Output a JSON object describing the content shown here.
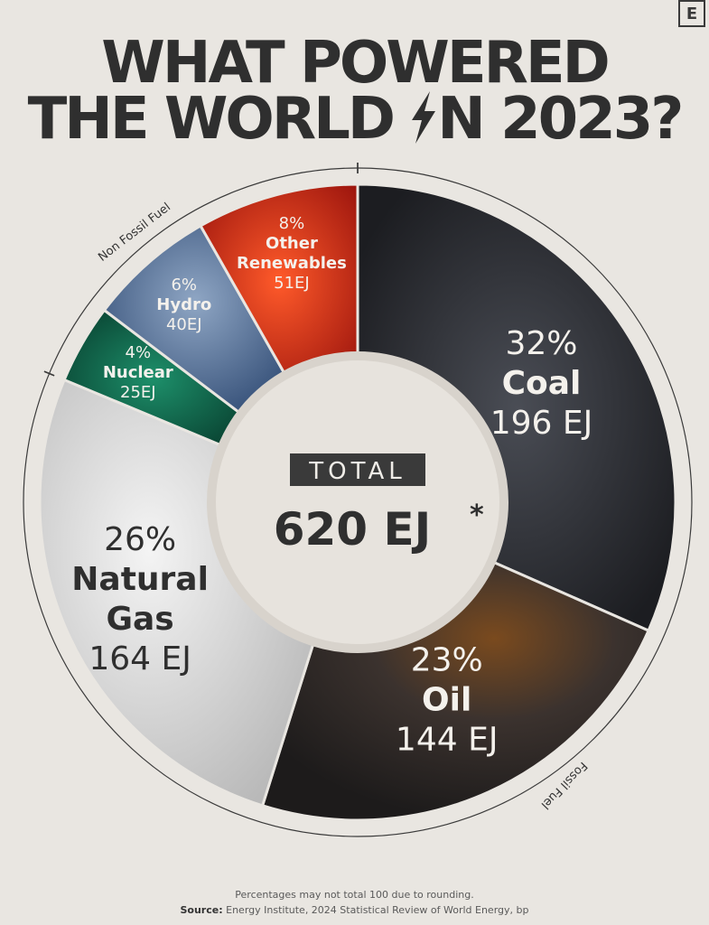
{
  "brand": {
    "logo_letter": "E"
  },
  "header": {
    "title_line1": "WHAT POWERED",
    "title_line2_a": "THE WORLD",
    "title_line2_b": "N 2023?"
  },
  "chart_data": {
    "type": "pie",
    "style": "donut",
    "center_label": "TOTAL",
    "center_value": "620 EJ",
    "center_marker": "*",
    "groups": [
      {
        "label": "Non Fossil Fuel",
        "members": [
          "Nuclear",
          "Hydro",
          "Other Renewables"
        ]
      },
      {
        "label": "Fossil Fuel",
        "members": [
          "Coal",
          "Oil",
          "Natural Gas"
        ]
      }
    ],
    "slices": [
      {
        "name": "Coal",
        "percent": 32,
        "value": 196,
        "pct_label": "32%",
        "value_label": "196 EJ",
        "color": "#2c2e33"
      },
      {
        "name": "Oil",
        "percent": 23,
        "value": 144,
        "pct_label": "23%",
        "value_label": "144 EJ",
        "color": "#3a3330",
        "accent": "#c8741e"
      },
      {
        "name": "Natural Gas",
        "percent": 26,
        "value": 164,
        "pct_label": "26%",
        "value_label": "164 EJ",
        "color": "#d9d9d9"
      },
      {
        "name": "Nuclear",
        "percent": 4,
        "value": 25,
        "pct_label": "4%",
        "value_label": "25EJ",
        "color": "#0f5a44"
      },
      {
        "name": "Hydro",
        "percent": 6,
        "value": 40,
        "pct_label": "6%",
        "value_label": "40EJ",
        "color": "#4f6f9a"
      },
      {
        "name": "Other Renewables",
        "percent": 8,
        "value": 51,
        "pct_label": "8%",
        "value_label": "51EJ",
        "color": "#c2281b"
      }
    ]
  },
  "footer": {
    "note": "Percentages may not total 100 due to rounding.",
    "source_label": "Source:",
    "source_text": "Energy Institute, 2024 Statistical Review of World Energy, bp"
  }
}
